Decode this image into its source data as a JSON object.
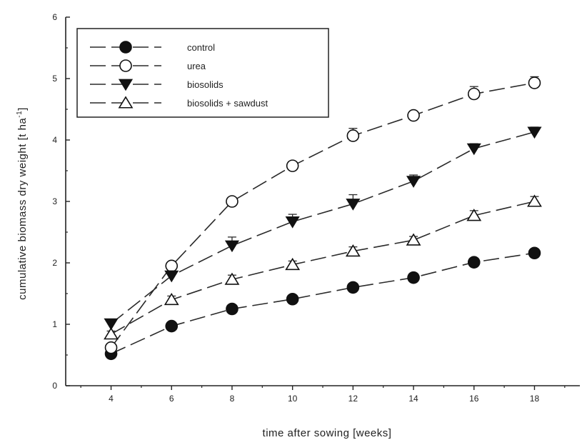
{
  "chart_data": {
    "type": "line",
    "xlabel": "time after sowing [weeks]",
    "ylabel_main": "cumulative biomass dry weight [t ha",
    "ylabel_sup": "-1",
    "ylabel_end": "]",
    "x": [
      4,
      6,
      8,
      10,
      12,
      14,
      16,
      18
    ],
    "xlim": [
      2.5,
      19.5
    ],
    "ylim": [
      0,
      6
    ],
    "xticks": [
      "4",
      "6",
      "8",
      "10",
      "12",
      "14",
      "16",
      "18"
    ],
    "yticks": [
      "0",
      "1",
      "2",
      "3",
      "4",
      "5",
      "6"
    ],
    "grid": false,
    "legend_position": "top-left",
    "series": [
      {
        "name": "control",
        "marker": "filled-circle",
        "values": [
          0.52,
          0.97,
          1.25,
          1.41,
          1.6,
          1.76,
          2.01,
          2.16
        ],
        "errors": [
          0.03,
          0.04,
          0.05,
          0.05,
          0.05,
          0.05,
          0.05,
          0.05
        ]
      },
      {
        "name": "urea",
        "marker": "open-circle",
        "values": [
          0.62,
          1.95,
          3.0,
          3.58,
          4.07,
          4.4,
          4.75,
          4.93
        ],
        "errors": [
          0.04,
          0.06,
          0.06,
          0.07,
          0.12,
          0.07,
          0.12,
          0.1
        ]
      },
      {
        "name": "biosolids",
        "marker": "filled-triangle-down",
        "values": [
          1.01,
          1.79,
          2.28,
          2.67,
          2.96,
          3.33,
          3.86,
          4.13
        ],
        "errors": [
          0.05,
          0.08,
          0.14,
          0.12,
          0.15,
          0.1,
          0.08,
          0.08
        ]
      },
      {
        "name": "biosolids + sawdust",
        "marker": "open-triangle-up",
        "values": [
          0.84,
          1.4,
          1.73,
          1.97,
          2.19,
          2.37,
          2.77,
          3.0
        ],
        "errors": [
          0.05,
          0.06,
          0.07,
          0.06,
          0.07,
          0.06,
          0.08,
          0.08
        ]
      }
    ],
    "colors": {
      "line": "#2a2a2a",
      "fill": "#111111",
      "open_fill": "#ffffff"
    }
  }
}
